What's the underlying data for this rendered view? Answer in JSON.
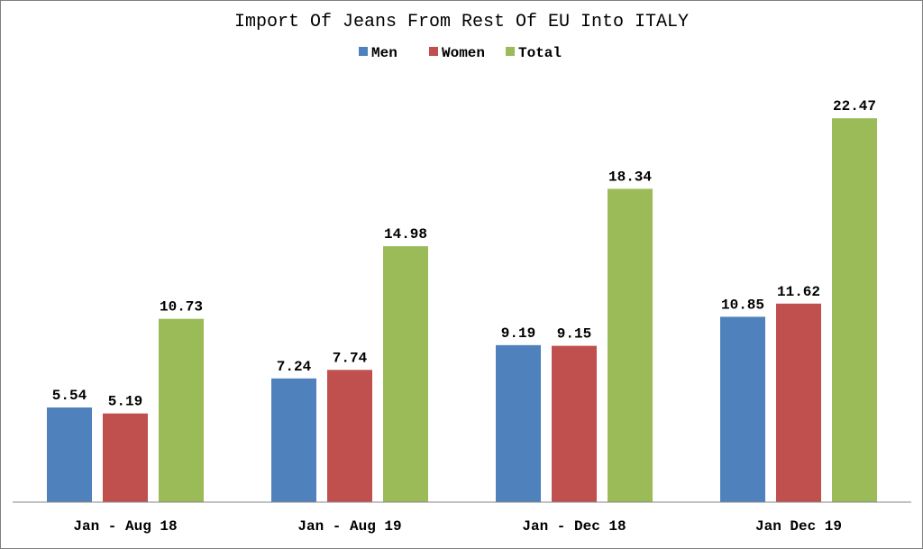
{
  "chart_data": {
    "type": "bar",
    "title": "Import Of Jeans From Rest Of EU Into ITALY",
    "categories": [
      "Jan - Aug 18",
      "Jan - Aug 19",
      "Jan - Dec 18",
      "Jan Dec 19"
    ],
    "series": [
      {
        "name": "Men",
        "color": "#4f81bd",
        "values": [
          5.54,
          7.24,
          9.19,
          10.85
        ],
        "labels": [
          "5.54",
          "7.24",
          "9.19",
          "10.85"
        ]
      },
      {
        "name": "Women",
        "color": "#c0504d",
        "values": [
          5.19,
          7.74,
          9.15,
          11.62
        ],
        "labels": [
          "5.19",
          "7.74",
          "9.15",
          "11.62"
        ]
      },
      {
        "name": "Total",
        "color": "#9bbb59",
        "values": [
          10.73,
          14.98,
          18.34,
          22.47
        ],
        "labels": [
          "10.73",
          "14.98",
          "18.34",
          "22.47"
        ]
      }
    ],
    "xlabel": "",
    "ylabel": "",
    "ylim": [
      0,
      25
    ],
    "grid": false,
    "legend": "top-center"
  }
}
